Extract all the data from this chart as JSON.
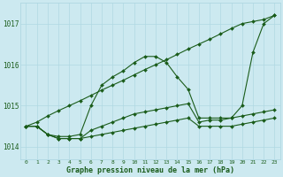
{
  "title": "Graphe pression niveau de la mer (hPa)",
  "xlabel_ticks": [
    "0",
    "1",
    "2",
    "3",
    "4",
    "5",
    "6",
    "7",
    "8",
    "9",
    "10",
    "11",
    "12",
    "13",
    "14",
    "15",
    "16",
    "17",
    "18",
    "19",
    "20",
    "21",
    "22",
    "23"
  ],
  "ylim": [
    1013.7,
    1017.5
  ],
  "yticks": [
    1014,
    1015,
    1016,
    1017
  ],
  "background_color": "#cce9f0",
  "grid_color": "#b0d8e2",
  "line_color": "#1a5c1a",
  "line_straight": [
    1014.5,
    1014.6,
    1014.75,
    1014.88,
    1015.0,
    1015.12,
    1015.25,
    1015.38,
    1015.5,
    1015.62,
    1015.75,
    1015.88,
    1016.0,
    1016.12,
    1016.25,
    1016.38,
    1016.5,
    1016.62,
    1016.75,
    1016.88,
    1017.0,
    1017.05,
    1017.1,
    1017.2
  ],
  "line_peak": [
    1014.5,
    1014.5,
    1014.3,
    1014.25,
    1014.25,
    1014.3,
    1015.0,
    1015.5,
    1015.7,
    1015.85,
    1016.05,
    1016.2,
    1016.2,
    1016.05,
    1015.7,
    1015.4,
    1014.7,
    1014.7,
    1014.7,
    1014.7,
    1015.0,
    1016.3,
    1017.0,
    1017.2
  ],
  "line_mid": [
    1014.5,
    1014.5,
    1014.3,
    1014.2,
    1014.2,
    1014.2,
    1014.4,
    1014.5,
    1014.6,
    1014.7,
    1014.8,
    1014.85,
    1014.9,
    1014.95,
    1015.0,
    1015.05,
    1014.6,
    1014.65,
    1014.65,
    1014.7,
    1014.75,
    1014.8,
    1014.85,
    1014.9
  ],
  "line_flat": [
    1014.5,
    1014.5,
    1014.3,
    1014.2,
    1014.2,
    1014.2,
    1014.25,
    1014.3,
    1014.35,
    1014.4,
    1014.45,
    1014.5,
    1014.55,
    1014.6,
    1014.65,
    1014.7,
    1014.5,
    1014.5,
    1014.5,
    1014.5,
    1014.55,
    1014.6,
    1014.65,
    1014.7
  ]
}
